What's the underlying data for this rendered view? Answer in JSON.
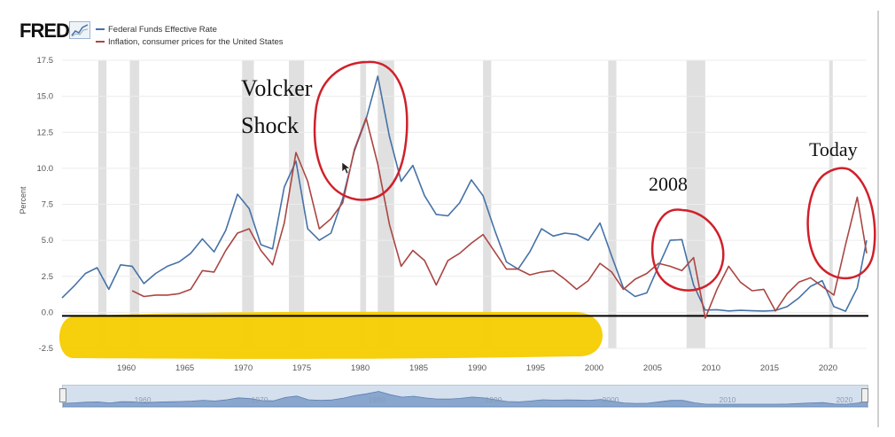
{
  "app": {
    "logo_text": "FRED",
    "logo_icon": "fred-chart-icon"
  },
  "legend": [
    {
      "label": "Federal Funds Effective Rate",
      "color": "#4572a7"
    },
    {
      "label": "Inflation, consumer prices for the United States",
      "color": "#aa4643"
    }
  ],
  "annotations": {
    "volcker_line1": "Volcker",
    "volcker_line2": "Shock",
    "year_2008": "2008",
    "today": "Today"
  },
  "colors": {
    "fed_funds": "#4572a7",
    "inflation": "#aa4643",
    "recession": "#e0e0e0",
    "marker_circle": "#d0202a",
    "highlighter": "#f5cc00",
    "zero_line": "#000000"
  },
  "chart_data": {
    "type": "line",
    "ylabel": "Percent",
    "xlim": [
      1954.5,
      2023.3
    ],
    "ylim": [
      -2.5,
      17.5
    ],
    "y_ticks": [
      "17.5",
      "15.0",
      "12.5",
      "10.0",
      "7.5",
      "5.0",
      "2.5",
      "0.0",
      "-2.5"
    ],
    "y_tick_values": [
      17.5,
      15,
      12.5,
      10,
      7.5,
      5,
      2.5,
      0,
      -2.5
    ],
    "x_ticks": [
      "1960",
      "1965",
      "1970",
      "1975",
      "1980",
      "1985",
      "1990",
      "1995",
      "2000",
      "2005",
      "2010",
      "2015",
      "2020"
    ],
    "x_tick_values": [
      1960,
      1965,
      1970,
      1975,
      1980,
      1985,
      1990,
      1995,
      2000,
      2005,
      2010,
      2015,
      2020
    ],
    "navigator_ticks": [
      "1960",
      "1970",
      "1980",
      "1990",
      "2000",
      "2010",
      "2020"
    ],
    "navigator_tick_values": [
      1960,
      1970,
      1980,
      1990,
      2000,
      2010,
      2020
    ],
    "recessions": [
      [
        1957.6,
        1958.3
      ],
      [
        1960.3,
        1961.1
      ],
      [
        1969.9,
        1970.9
      ],
      [
        1973.9,
        1975.2
      ],
      [
        1980.0,
        1980.5
      ],
      [
        1981.5,
        1982.9
      ],
      [
        1990.5,
        1991.2
      ],
      [
        2001.2,
        2001.9
      ],
      [
        2007.9,
        2009.5
      ],
      [
        2020.1,
        2020.4
      ]
    ],
    "series": [
      {
        "name": "Federal Funds Effective Rate",
        "x": [
          1954.5,
          1955.5,
          1956.5,
          1957.5,
          1958.5,
          1959.5,
          1960.5,
          1961.5,
          1962.5,
          1963.5,
          1964.5,
          1965.5,
          1966.5,
          1967.5,
          1968.5,
          1969.5,
          1970.5,
          1971.5,
          1972.5,
          1973.5,
          1974.5,
          1975.5,
          1976.5,
          1977.5,
          1978.5,
          1979.5,
          1980.5,
          1981.5,
          1982.5,
          1983.5,
          1984.5,
          1985.5,
          1986.5,
          1987.5,
          1988.5,
          1989.5,
          1990.5,
          1991.5,
          1992.5,
          1993.5,
          1994.5,
          1995.5,
          1996.5,
          1997.5,
          1998.5,
          1999.5,
          2000.5,
          2001.5,
          2002.5,
          2003.5,
          2004.5,
          2005.5,
          2006.5,
          2007.5,
          2008.5,
          2009.5,
          2010.5,
          2011.5,
          2012.5,
          2013.5,
          2014.5,
          2015.5,
          2016.5,
          2017.5,
          2018.5,
          2019.5,
          2020.5,
          2021.5,
          2022.5,
          2023.3
        ],
        "values": [
          1.0,
          1.8,
          2.7,
          3.1,
          1.6,
          3.3,
          3.2,
          2.0,
          2.7,
          3.2,
          3.5,
          4.1,
          5.1,
          4.2,
          5.7,
          8.2,
          7.2,
          4.7,
          4.4,
          8.7,
          10.5,
          5.8,
          5.0,
          5.5,
          7.9,
          11.2,
          13.4,
          16.4,
          12.2,
          9.1,
          10.2,
          8.1,
          6.8,
          6.7,
          7.6,
          9.2,
          8.1,
          5.7,
          3.5,
          3.0,
          4.2,
          5.8,
          5.3,
          5.5,
          5.4,
          5.0,
          6.2,
          3.9,
          1.7,
          1.1,
          1.35,
          3.2,
          5.0,
          5.05,
          1.9,
          0.16,
          0.18,
          0.1,
          0.14,
          0.11,
          0.09,
          0.13,
          0.4,
          1.0,
          1.8,
          2.2,
          0.4,
          0.08,
          1.7,
          5.0
        ]
      },
      {
        "name": "Inflation, consumer prices for the United States",
        "x": [
          1960.5,
          1961.5,
          1962.5,
          1963.5,
          1964.5,
          1965.5,
          1966.5,
          1967.5,
          1968.5,
          1969.5,
          1970.5,
          1971.5,
          1972.5,
          1973.5,
          1974.5,
          1975.5,
          1976.5,
          1977.5,
          1978.5,
          1979.5,
          1980.5,
          1981.5,
          1982.5,
          1983.5,
          1984.5,
          1985.5,
          1986.5,
          1987.5,
          1988.5,
          1989.5,
          1990.5,
          1991.5,
          1992.5,
          1993.5,
          1994.5,
          1995.5,
          1996.5,
          1997.5,
          1998.5,
          1999.5,
          2000.5,
          2001.5,
          2002.5,
          2003.5,
          2004.5,
          2005.5,
          2006.5,
          2007.5,
          2008.5,
          2009.5,
          2010.5,
          2011.5,
          2012.5,
          2013.5,
          2014.5,
          2015.5,
          2016.5,
          2017.5,
          2018.5,
          2019.5,
          2020.5,
          2021.5,
          2022.5,
          2023.3
        ],
        "values": [
          1.5,
          1.1,
          1.2,
          1.2,
          1.3,
          1.6,
          2.9,
          2.8,
          4.3,
          5.5,
          5.8,
          4.3,
          3.3,
          6.2,
          11.1,
          9.1,
          5.8,
          6.5,
          7.6,
          11.3,
          13.5,
          10.3,
          6.1,
          3.2,
          4.3,
          3.6,
          1.9,
          3.6,
          4.1,
          4.8,
          5.4,
          4.2,
          3.0,
          3.0,
          2.6,
          2.8,
          2.9,
          2.3,
          1.6,
          2.2,
          3.4,
          2.8,
          1.6,
          2.3,
          2.7,
          3.4,
          3.2,
          2.9,
          3.8,
          -0.4,
          1.6,
          3.2,
          2.1,
          1.5,
          1.6,
          0.1,
          1.3,
          2.1,
          2.4,
          1.8,
          1.2,
          4.7,
          8.0,
          4.1
        ]
      }
    ]
  }
}
